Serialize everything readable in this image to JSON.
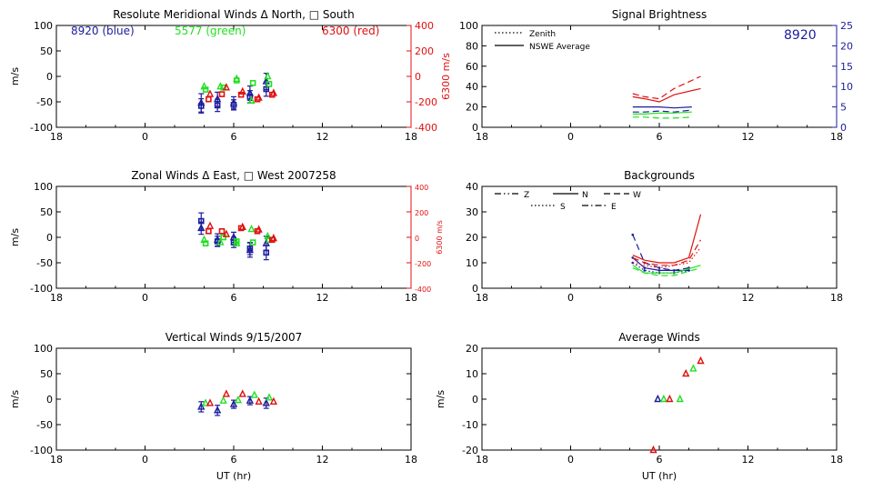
{
  "colors": {
    "axis": "#000000",
    "blue": "#1c1c9c",
    "green": "#22e022",
    "red": "#e01010",
    "right_axis_blue": "#1c1c9c"
  },
  "xaxis": {
    "ticks": [
      "18",
      "0",
      "6",
      "12",
      "18"
    ],
    "label": "UT (hr)",
    "range_hours": [
      -6,
      18
    ]
  },
  "chart_data": [
    {
      "id": "meridional",
      "type": "scatter",
      "title": "Resolute Meridional Winds Δ North, □ South",
      "ylabel": "m/s",
      "ylim": [
        -100,
        100
      ],
      "yticks": [
        "100",
        "50",
        "0",
        "-50",
        "-100"
      ],
      "right_axis": {
        "label": "6300 m/s",
        "ylim": [
          -400,
          400
        ],
        "ticks": [
          "400",
          "200",
          "0",
          "-200",
          "-400"
        ],
        "color": "red"
      },
      "annotations": [
        {
          "text": "8920 (blue)",
          "color": "blue"
        },
        {
          "text": "5577 (green)",
          "color": "green"
        },
        {
          "text": "6300 (red)",
          "color": "red"
        }
      ],
      "series": [
        {
          "color": "blue",
          "error_bars": true,
          "points": [
            {
              "x": 3.8,
              "y": -52,
              "err": 18,
              "m": "tri"
            },
            {
              "x": 3.8,
              "y": -58,
              "err": 14,
              "m": "sq"
            },
            {
              "x": 4.9,
              "y": -45,
              "err": 14,
              "m": "tri"
            },
            {
              "x": 4.9,
              "y": -57,
              "err": 12,
              "m": "sq"
            },
            {
              "x": 6.0,
              "y": -52,
              "err": 12,
              "m": "tri"
            },
            {
              "x": 6.0,
              "y": -56,
              "err": 10,
              "m": "sq"
            },
            {
              "x": 7.1,
              "y": -33,
              "err": 14,
              "m": "tri"
            },
            {
              "x": 7.1,
              "y": -40,
              "err": 12,
              "m": "sq"
            },
            {
              "x": 8.2,
              "y": -10,
              "err": 16,
              "m": "tri"
            },
            {
              "x": 8.2,
              "y": -25,
              "err": 14,
              "m": "sq"
            }
          ]
        },
        {
          "color": "green",
          "points": [
            {
              "x": 4.0,
              "y": -20,
              "m": "tri"
            },
            {
              "x": 4.1,
              "y": -26,
              "m": "sq"
            },
            {
              "x": 5.1,
              "y": -20,
              "m": "tri"
            },
            {
              "x": 5.3,
              "y": -22,
              "m": "sq"
            },
            {
              "x": 6.2,
              "y": -5,
              "m": "tri"
            },
            {
              "x": 6.2,
              "y": -8,
              "m": "sq"
            },
            {
              "x": 7.2,
              "y": -48,
              "m": "tri"
            },
            {
              "x": 7.3,
              "y": -13,
              "m": "sq"
            },
            {
              "x": 8.3,
              "y": 0,
              "m": "tri"
            },
            {
              "x": 8.4,
              "y": -15,
              "m": "sq"
            }
          ]
        },
        {
          "color": "red",
          "points": [
            {
              "x": 4.4,
              "y": -35,
              "m": "tri"
            },
            {
              "x": 4.3,
              "y": -45,
              "m": "sq"
            },
            {
              "x": 5.5,
              "y": -22,
              "m": "tri"
            },
            {
              "x": 5.2,
              "y": -35,
              "m": "sq"
            },
            {
              "x": 6.6,
              "y": -30,
              "m": "tri"
            },
            {
              "x": 6.5,
              "y": -36,
              "m": "sq"
            },
            {
              "x": 7.7,
              "y": -42,
              "m": "tri"
            },
            {
              "x": 7.6,
              "y": -45,
              "m": "sq"
            },
            {
              "x": 8.7,
              "y": -33,
              "m": "tri"
            },
            {
              "x": 8.6,
              "y": -36,
              "m": "sq"
            }
          ]
        }
      ]
    },
    {
      "id": "zonal",
      "type": "scatter",
      "title": "Zonal Winds Δ East, □ West 2007258",
      "ylabel": "m/s",
      "ylim": [
        -100,
        100
      ],
      "yticks": [
        "100",
        "50",
        "0",
        "-50",
        "-100"
      ],
      "right_axis": {
        "label": "6300 m/s",
        "ylim": [
          -400,
          400
        ],
        "ticks": [
          "400",
          "200",
          "0",
          "-200",
          "-400"
        ],
        "color": "red"
      },
      "series": [
        {
          "color": "blue",
          "error_bars": true,
          "points": [
            {
              "x": 3.8,
              "y": 32,
              "err": 16,
              "m": "sq"
            },
            {
              "x": 3.8,
              "y": 18,
              "err": 12,
              "m": "tri"
            },
            {
              "x": 4.9,
              "y": -5,
              "err": 12,
              "m": "tri"
            },
            {
              "x": 4.9,
              "y": -8,
              "err": 10,
              "m": "sq"
            },
            {
              "x": 6.0,
              "y": 0,
              "err": 10,
              "m": "tri"
            },
            {
              "x": 6.0,
              "y": -10,
              "err": 10,
              "m": "sq"
            },
            {
              "x": 7.1,
              "y": -25,
              "err": 14,
              "m": "tri"
            },
            {
              "x": 7.1,
              "y": -22,
              "err": 12,
              "m": "sq"
            },
            {
              "x": 8.2,
              "y": -12,
              "err": 14,
              "m": "tri"
            },
            {
              "x": 8.2,
              "y": -30,
              "err": 14,
              "m": "sq"
            }
          ]
        },
        {
          "color": "green",
          "points": [
            {
              "x": 4.0,
              "y": -5,
              "m": "tri"
            },
            {
              "x": 4.1,
              "y": -12,
              "m": "sq"
            },
            {
              "x": 5.1,
              "y": -10,
              "m": "tri"
            },
            {
              "x": 5.3,
              "y": 0,
              "m": "sq"
            },
            {
              "x": 6.2,
              "y": -12,
              "m": "tri"
            },
            {
              "x": 6.2,
              "y": -8,
              "m": "sq"
            },
            {
              "x": 7.2,
              "y": 16,
              "m": "tri"
            },
            {
              "x": 7.3,
              "y": -10,
              "m": "sq"
            },
            {
              "x": 8.3,
              "y": 2,
              "m": "tri"
            },
            {
              "x": 8.4,
              "y": -5,
              "m": "sq"
            }
          ]
        },
        {
          "color": "red",
          "points": [
            {
              "x": 4.4,
              "y": 22,
              "m": "tri"
            },
            {
              "x": 4.3,
              "y": 12,
              "m": "sq"
            },
            {
              "x": 5.5,
              "y": 6,
              "m": "tri"
            },
            {
              "x": 5.2,
              "y": 12,
              "m": "sq"
            },
            {
              "x": 6.6,
              "y": 20,
              "m": "tri"
            },
            {
              "x": 6.5,
              "y": 18,
              "m": "sq"
            },
            {
              "x": 7.7,
              "y": 15,
              "m": "tri"
            },
            {
              "x": 7.6,
              "y": 12,
              "m": "sq"
            },
            {
              "x": 8.7,
              "y": -2,
              "m": "tri"
            },
            {
              "x": 8.6,
              "y": -5,
              "m": "sq"
            }
          ]
        }
      ]
    },
    {
      "id": "vertical",
      "type": "scatter",
      "title": "Vertical Winds 9/15/2007",
      "ylabel": "m/s",
      "ylim": [
        -100,
        100
      ],
      "yticks": [
        "100",
        "50",
        "0",
        "-50",
        "-100"
      ],
      "series": [
        {
          "color": "blue",
          "error_bars": true,
          "points": [
            {
              "x": 3.8,
              "y": -15,
              "err": 10,
              "m": "tri"
            },
            {
              "x": 4.9,
              "y": -22,
              "err": 10,
              "m": "tri"
            },
            {
              "x": 6.0,
              "y": -10,
              "err": 8,
              "m": "tri"
            },
            {
              "x": 7.1,
              "y": -3,
              "err": 8,
              "m": "tri"
            },
            {
              "x": 8.2,
              "y": -8,
              "err": 10,
              "m": "tri"
            }
          ]
        },
        {
          "color": "green",
          "points": [
            {
              "x": 4.1,
              "y": -8,
              "m": "tri"
            },
            {
              "x": 5.3,
              "y": -3,
              "m": "tri"
            },
            {
              "x": 6.3,
              "y": -2,
              "m": "tri"
            },
            {
              "x": 7.4,
              "y": 8,
              "m": "tri"
            },
            {
              "x": 8.4,
              "y": 3,
              "m": "tri"
            }
          ]
        },
        {
          "color": "red",
          "points": [
            {
              "x": 4.4,
              "y": -8,
              "m": "tri"
            },
            {
              "x": 5.5,
              "y": 10,
              "m": "tri"
            },
            {
              "x": 6.6,
              "y": 10,
              "m": "tri"
            },
            {
              "x": 7.7,
              "y": -5,
              "m": "tri"
            },
            {
              "x": 8.7,
              "y": -5,
              "m": "tri"
            }
          ]
        }
      ]
    },
    {
      "id": "brightness",
      "type": "line",
      "title": "Signal Brightness",
      "ylim": [
        0,
        100
      ],
      "yticks": [
        "100",
        "80",
        "60",
        "40",
        "20",
        "0"
      ],
      "right_axis": {
        "label": "",
        "ylim": [
          0,
          25
        ],
        "ticks": [
          "25",
          "20",
          "15",
          "10",
          "5",
          "0"
        ],
        "color": "right_axis_blue"
      },
      "annotation": {
        "text": "8920",
        "color": "blue"
      },
      "legend": [
        {
          "label": "Zenith",
          "style": "dotted"
        },
        {
          "label": "NSWE Average",
          "style": "solid"
        }
      ],
      "series": [
        {
          "color": "blue",
          "style": "solid",
          "x": [
            4.2,
            5,
            6,
            7,
            8.2
          ],
          "y": [
            20,
            20,
            20,
            19,
            20
          ]
        },
        {
          "color": "blue",
          "style": "dash",
          "x": [
            4.2,
            5,
            6,
            7,
            8.2
          ],
          "y": [
            15,
            15,
            16,
            15,
            17
          ]
        },
        {
          "color": "green",
          "style": "solid",
          "x": [
            4.2,
            5,
            6,
            7,
            8.2
          ],
          "y": [
            13,
            13,
            14,
            14,
            15
          ]
        },
        {
          "color": "green",
          "style": "dash",
          "x": [
            4.2,
            5,
            6,
            7,
            8.2
          ],
          "y": [
            10,
            10,
            9,
            9,
            10
          ]
        },
        {
          "color": "red",
          "style": "solid",
          "x": [
            4.2,
            5,
            6,
            7,
            8.8
          ],
          "y": [
            30,
            28,
            25,
            32,
            38
          ]
        },
        {
          "color": "red",
          "style": "dash",
          "x": [
            4.2,
            5,
            6,
            7,
            8.8
          ],
          "y": [
            33,
            30,
            28,
            38,
            50
          ]
        }
      ]
    },
    {
      "id": "backgrounds",
      "type": "line",
      "title": "Backgrounds",
      "ylim": [
        0,
        40
      ],
      "yticks": [
        "40",
        "30",
        "20",
        "10",
        "0"
      ],
      "legend": [
        {
          "label": "Z",
          "style": "dashdotdot"
        },
        {
          "label": "N",
          "style": "solid"
        },
        {
          "label": "W",
          "style": "dash"
        },
        {
          "label": "S",
          "style": "dotted"
        },
        {
          "label": "E",
          "style": "dashdot"
        }
      ],
      "series": [
        {
          "color": "blue",
          "style": "dash",
          "x": [
            4.2,
            5,
            6,
            7,
            8
          ],
          "y": [
            21,
            10,
            8,
            7,
            8
          ]
        },
        {
          "color": "blue",
          "style": "solid",
          "x": [
            4.2,
            5,
            6,
            7,
            8
          ],
          "y": [
            12,
            8,
            7,
            7,
            7
          ]
        },
        {
          "color": "blue",
          "style": "dotted",
          "x": [
            4.2,
            5,
            6,
            7,
            8
          ],
          "y": [
            10,
            7,
            6,
            6,
            7
          ]
        },
        {
          "color": "green",
          "style": "solid",
          "x": [
            4.2,
            5,
            6,
            7,
            8.8
          ],
          "y": [
            9,
            6,
            6,
            6,
            9
          ]
        },
        {
          "color": "green",
          "style": "dash",
          "x": [
            4.2,
            5,
            6,
            7,
            8.8
          ],
          "y": [
            8,
            6,
            5,
            5,
            8
          ]
        },
        {
          "color": "red",
          "style": "solid",
          "x": [
            4.2,
            5,
            6,
            7,
            8,
            8.8
          ],
          "y": [
            13,
            11,
            10,
            10,
            12,
            29
          ]
        },
        {
          "color": "red",
          "style": "dash",
          "x": [
            4.2,
            5,
            6,
            7,
            8,
            8.8
          ],
          "y": [
            12,
            10,
            9,
            9,
            11,
            19
          ]
        },
        {
          "color": "red",
          "style": "dotted",
          "x": [
            4.2,
            5,
            6,
            7,
            8,
            8.8
          ],
          "y": [
            10,
            9,
            8,
            9,
            10,
            16
          ]
        }
      ]
    },
    {
      "id": "average",
      "type": "scatter",
      "title": "Average Winds",
      "ylabel": "m/s",
      "ylim": [
        -20,
        20
      ],
      "yticks": [
        "20",
        "10",
        "0",
        "-10",
        "-20"
      ],
      "series": [
        {
          "color": "blue",
          "points": [
            {
              "x": 5.9,
              "y": 0,
              "m": "tri"
            }
          ]
        },
        {
          "color": "green",
          "points": [
            {
              "x": 6.3,
              "y": 0,
              "m": "tri"
            },
            {
              "x": 7.4,
              "y": 0,
              "m": "tri"
            },
            {
              "x": 8.3,
              "y": 12,
              "m": "tri"
            }
          ]
        },
        {
          "color": "red",
          "points": [
            {
              "x": 5.6,
              "y": -20,
              "m": "tri"
            },
            {
              "x": 6.7,
              "y": 0,
              "m": "tri"
            },
            {
              "x": 7.8,
              "y": 10,
              "m": "tri"
            },
            {
              "x": 8.8,
              "y": 15,
              "m": "tri"
            }
          ]
        }
      ]
    }
  ]
}
